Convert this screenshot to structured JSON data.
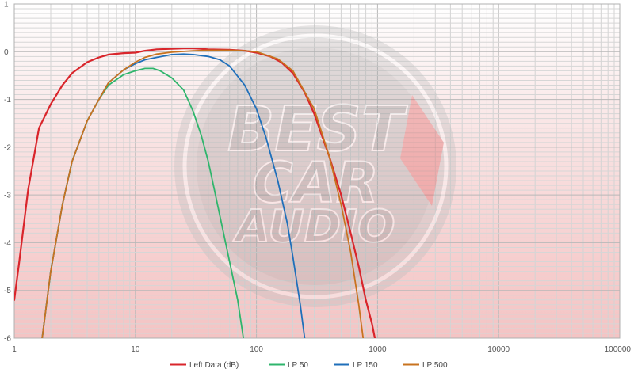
{
  "chart_data": {
    "type": "line",
    "title": "",
    "xlabel": "",
    "ylabel": "",
    "x_scale": "log",
    "xlim": [
      1,
      100000
    ],
    "ylim": [
      -6,
      1
    ],
    "x_ticks": [
      1,
      10,
      100,
      1000,
      10000,
      100000
    ],
    "x_tick_labels": [
      "1",
      "10",
      "100",
      "1000",
      "10000",
      "100000"
    ],
    "y_ticks": [
      1,
      0,
      -1,
      -2,
      -3,
      -4,
      -5,
      -6
    ],
    "y_tick_labels": [
      "1",
      "0",
      "-1",
      "-2",
      "-3",
      "-4",
      "-5",
      "-6"
    ],
    "grid": true,
    "background": "red-to-white vertical gradient",
    "legend_position": "bottom-center",
    "watermark": "BEST CAR AUDIO",
    "series": [
      {
        "name": "Left Data (dB)",
        "color": "#d9252b",
        "x": [
          1,
          1.1,
          1.3,
          1.6,
          2,
          2.5,
          3,
          4,
          5,
          6,
          8,
          10,
          12,
          15,
          20,
          25,
          30,
          40,
          60,
          80,
          100,
          130,
          160,
          200,
          250,
          300,
          400,
          500,
          600,
          700,
          800,
          900,
          950
        ],
        "y": [
          -5.2,
          -4.4,
          -2.9,
          -1.6,
          -1.1,
          -0.7,
          -0.45,
          -0.22,
          -0.12,
          -0.06,
          -0.03,
          -0.02,
          0.02,
          0.05,
          0.06,
          0.07,
          0.07,
          0.05,
          0.04,
          0.02,
          -0.02,
          -0.1,
          -0.22,
          -0.45,
          -0.85,
          -1.3,
          -2.2,
          -3.0,
          -3.8,
          -4.5,
          -5.2,
          -5.7,
          -6.0
        ]
      },
      {
        "name": "LP 50",
        "color": "#2fb56c",
        "x": [
          1.7,
          2,
          2.5,
          3,
          4,
          5,
          6,
          8,
          10,
          12,
          14,
          16,
          20,
          25,
          30,
          35,
          40,
          45,
          50,
          60,
          70,
          78
        ],
        "y": [
          -6.0,
          -4.6,
          -3.2,
          -2.3,
          -1.45,
          -1.0,
          -0.7,
          -0.48,
          -0.4,
          -0.35,
          -0.35,
          -0.4,
          -0.55,
          -0.8,
          -1.25,
          -1.75,
          -2.3,
          -2.9,
          -3.45,
          -4.4,
          -5.2,
          -6.0
        ]
      },
      {
        "name": "LP 150",
        "color": "#1f6fba",
        "x": [
          1.7,
          2,
          2.5,
          3,
          4,
          5,
          6,
          8,
          10,
          12,
          15,
          20,
          25,
          30,
          40,
          50,
          60,
          80,
          100,
          120,
          150,
          180,
          200,
          230,
          250
        ],
        "y": [
          -6.0,
          -4.6,
          -3.2,
          -2.3,
          -1.45,
          -1.0,
          -0.65,
          -0.38,
          -0.25,
          -0.17,
          -0.12,
          -0.06,
          -0.05,
          -0.06,
          -0.1,
          -0.17,
          -0.3,
          -0.7,
          -1.2,
          -1.8,
          -2.7,
          -3.6,
          -4.3,
          -5.3,
          -6.0
        ]
      },
      {
        "name": "LP 500",
        "color": "#c8731f",
        "x": [
          1.7,
          2,
          2.5,
          3,
          4,
          5,
          6,
          8,
          10,
          12,
          15,
          20,
          30,
          40,
          60,
          80,
          100,
          150,
          200,
          300,
          400,
          500,
          600,
          700,
          760
        ],
        "y": [
          -6.0,
          -4.6,
          -3.2,
          -2.3,
          -1.45,
          -1.0,
          -0.65,
          -0.38,
          -0.22,
          -0.12,
          -0.05,
          -0.01,
          0.02,
          0.03,
          0.03,
          0.02,
          0.0,
          -0.15,
          -0.4,
          -1.2,
          -2.2,
          -3.2,
          -4.2,
          -5.3,
          -6.0
        ]
      }
    ]
  }
}
